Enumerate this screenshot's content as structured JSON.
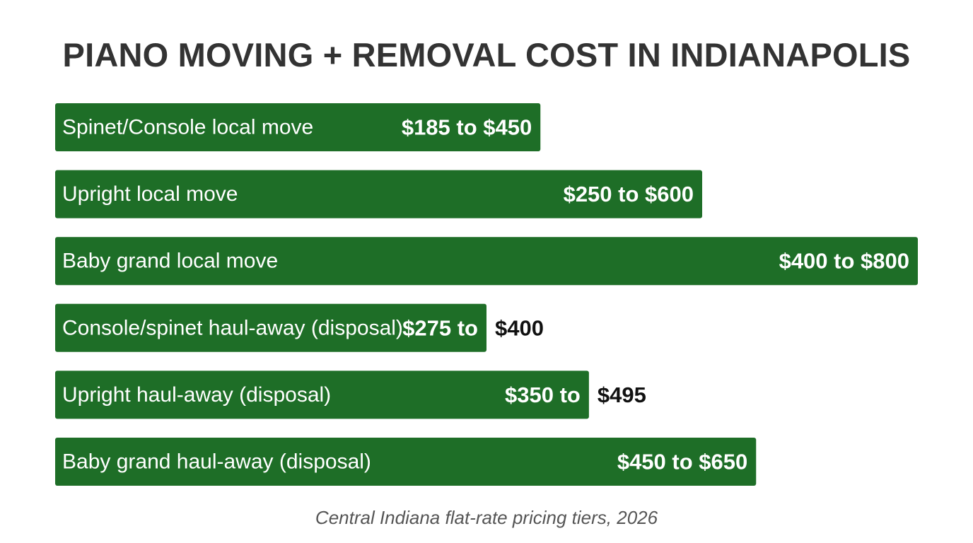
{
  "chart_data": {
    "type": "bar",
    "orientation": "horizontal",
    "title": "PIANO MOVING + REMOVAL COST IN INDIANAPOLIS",
    "caption": "Central Indiana flat-rate pricing tiers, 2026",
    "bar_color": "#1e6e27",
    "categories": [
      "Spinet/Console local move",
      "Upright local move",
      "Baby grand local move",
      "Console/spinet haul-away (disposal)",
      "Upright haul-away (disposal)",
      "Baby grand haul-away (disposal)"
    ],
    "ranges": [
      {
        "low": 185,
        "high": 450
      },
      {
        "low": 250,
        "high": 600
      },
      {
        "low": 400,
        "high": 800
      },
      {
        "low": 275,
        "high": 400
      },
      {
        "low": 350,
        "high": 495
      },
      {
        "low": 450,
        "high": 650
      }
    ],
    "value_labels": [
      [
        "$185 to $450"
      ],
      [
        "$250 to $600"
      ],
      [
        "$400 to $800"
      ],
      [
        "$275 to",
        "$400"
      ],
      [
        "$350 to",
        "$495"
      ],
      [
        "$450 to $650"
      ]
    ],
    "xlim": [
      0,
      800
    ],
    "grid": false,
    "legend": "none"
  }
}
